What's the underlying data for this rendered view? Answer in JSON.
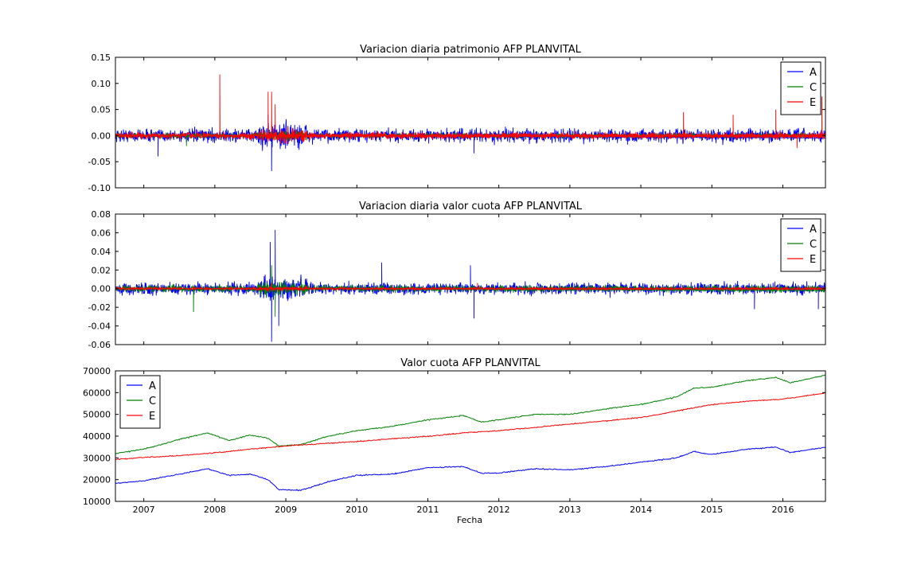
{
  "chart_data": [
    {
      "type": "line",
      "title": "Variacion diaria patrimonio AFP PLANVITAL",
      "ylim": [
        -0.1,
        0.15
      ],
      "yticks": [
        "-0.10",
        "-0.05",
        "0.00",
        "0.05",
        "0.10",
        "0.15"
      ],
      "xlim": [
        2006.6,
        2016.6
      ],
      "legend_position": "top-right",
      "series": [
        {
          "name": "A",
          "color": "#0000ff",
          "noise": 0.012,
          "spikes": [
            [
              2008.8,
              -0.068
            ],
            [
              2008.75,
              0.04
            ],
            [
              2007.2,
              -0.04
            ],
            [
              2011.65,
              -0.034
            ]
          ]
        },
        {
          "name": "C",
          "color": "#008000",
          "noise": 0.004,
          "spikes": [
            [
              2008.8,
              0.02
            ],
            [
              2007.6,
              -0.02
            ]
          ]
        },
        {
          "name": "E",
          "color": "#ff0000",
          "noise": 0.006,
          "spikes": [
            [
              2008.07,
              0.117
            ],
            [
              2008.75,
              0.084
            ],
            [
              2008.8,
              0.084
            ],
            [
              2008.85,
              0.06
            ],
            [
              2014.6,
              0.045
            ],
            [
              2015.9,
              0.05
            ],
            [
              2016.55,
              0.075
            ],
            [
              2015.3,
              0.04
            ],
            [
              2016.2,
              -0.024
            ]
          ]
        }
      ]
    },
    {
      "type": "line",
      "title": "Variacion diaria valor cuota AFP PLANVITAL",
      "ylim": [
        -0.06,
        0.08
      ],
      "yticks": [
        "-0.06",
        "-0.04",
        "-0.02",
        "0.00",
        "0.02",
        "0.04",
        "0.06",
        "0.08"
      ],
      "xlim": [
        2006.6,
        2016.6
      ],
      "legend_position": "top-right",
      "series": [
        {
          "name": "A",
          "color": "#0000ff",
          "noise": 0.006,
          "spikes": [
            [
              2008.85,
              0.063
            ],
            [
              2008.78,
              0.05
            ],
            [
              2008.8,
              -0.057
            ],
            [
              2008.9,
              -0.04
            ],
            [
              2010.35,
              0.028
            ],
            [
              2011.65,
              -0.032
            ],
            [
              2011.6,
              0.025
            ],
            [
              2015.6,
              -0.022
            ],
            [
              2016.5,
              -0.022
            ]
          ]
        },
        {
          "name": "C",
          "color": "#008000",
          "noise": 0.0035,
          "spikes": [
            [
              2008.8,
              0.025
            ],
            [
              2008.85,
              -0.03
            ],
            [
              2007.7,
              -0.025
            ]
          ]
        },
        {
          "name": "E",
          "color": "#ff0000",
          "noise": 0.0012,
          "spikes": [
            [
              2008.8,
              0.006
            ],
            [
              2011.7,
              0.006
            ]
          ]
        }
      ]
    },
    {
      "type": "line",
      "title": "Valor cuota AFP PLANVITAL",
      "xlabel": "Fecha",
      "ylim": [
        10000,
        70000
      ],
      "yticks": [
        "10000",
        "20000",
        "30000",
        "40000",
        "50000",
        "60000",
        "70000"
      ],
      "xlim": [
        2006.6,
        2016.6
      ],
      "xticks": [
        "2007",
        "2008",
        "2009",
        "2010",
        "2011",
        "2012",
        "2013",
        "2014",
        "2015",
        "2016"
      ],
      "xtick_values": [
        2007,
        2008,
        2009,
        2010,
        2011,
        2012,
        2013,
        2014,
        2015,
        2016
      ],
      "legend_position": "top-left",
      "series": [
        {
          "name": "A",
          "color": "#0000ff",
          "x": [
            2006.6,
            2007.0,
            2007.5,
            2007.9,
            2008.2,
            2008.5,
            2008.75,
            2008.9,
            2009.2,
            2009.6,
            2010.0,
            2010.5,
            2011.0,
            2011.5,
            2011.75,
            2012.0,
            2012.5,
            2013.0,
            2013.5,
            2014.0,
            2014.5,
            2014.75,
            2015.0,
            2015.5,
            2015.9,
            2016.1,
            2016.6
          ],
          "values": [
            18200,
            19500,
            22500,
            25000,
            22000,
            22500,
            20000,
            15500,
            15000,
            19000,
            22000,
            22500,
            25500,
            26000,
            23000,
            23000,
            25000,
            24500,
            26000,
            28000,
            30000,
            33000,
            31500,
            34000,
            35000,
            32500,
            34800
          ]
        },
        {
          "name": "C",
          "color": "#008000",
          "x": [
            2006.6,
            2007.0,
            2007.5,
            2007.9,
            2008.2,
            2008.5,
            2008.75,
            2008.9,
            2009.2,
            2009.6,
            2010.0,
            2010.5,
            2011.0,
            2011.5,
            2011.75,
            2012.0,
            2012.5,
            2013.0,
            2013.5,
            2014.0,
            2014.5,
            2014.75,
            2015.0,
            2015.5,
            2015.9,
            2016.1,
            2016.6
          ],
          "values": [
            32000,
            34000,
            38500,
            41500,
            38000,
            40500,
            39000,
            35500,
            36000,
            40000,
            42500,
            44500,
            47500,
            49500,
            46500,
            47500,
            50000,
            50000,
            52500,
            54500,
            58000,
            62000,
            62500,
            65500,
            67000,
            64500,
            68000
          ]
        },
        {
          "name": "E",
          "color": "#ff0000",
          "x": [
            2006.6,
            2007.0,
            2007.5,
            2008.0,
            2008.5,
            2009.0,
            2009.5,
            2010.0,
            2010.5,
            2011.0,
            2011.5,
            2012.0,
            2012.5,
            2013.0,
            2013.5,
            2014.0,
            2014.5,
            2015.0,
            2015.5,
            2016.0,
            2016.6
          ],
          "values": [
            29300,
            30200,
            31000,
            32300,
            34000,
            35500,
            36500,
            37500,
            38800,
            39900,
            41500,
            42500,
            44000,
            45500,
            47000,
            48500,
            51500,
            54500,
            56000,
            57000,
            59800
          ]
        }
      ]
    }
  ]
}
